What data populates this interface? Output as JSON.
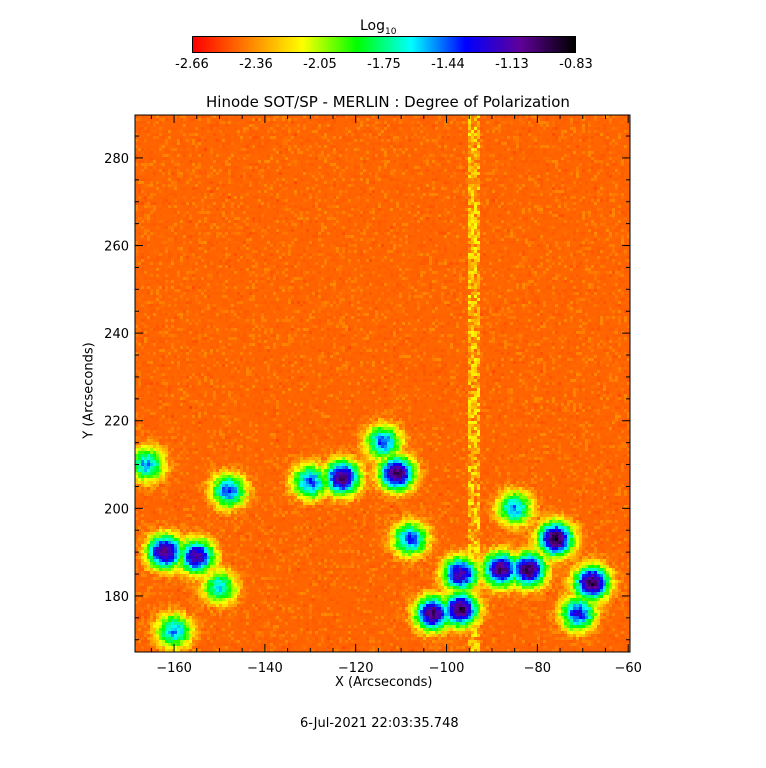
{
  "chart_data": {
    "type": "heatmap",
    "title": "Hinode SOT/SP - MERLIN : Degree of Polarization",
    "xlabel": "X (Arcseconds)",
    "ylabel": "Y (Arcseconds)",
    "xlim": [
      -168.6,
      -59.6
    ],
    "ylim": [
      167.2,
      289.8
    ],
    "xticks": [
      -160,
      -140,
      -120,
      -100,
      -80,
      -60
    ],
    "yticks": [
      180,
      200,
      220,
      240,
      260,
      280
    ],
    "colorbar": {
      "label": "Log",
      "label_sub": "10",
      "range": [
        -2.66,
        -0.83
      ],
      "ticks": [
        "-2.66",
        "-2.36",
        "-2.05",
        "-1.75",
        "-1.44",
        "-1.13",
        "-0.83"
      ],
      "colormap": [
        "#ff0000",
        "#ff8000",
        "#ffff00",
        "#00ff00",
        "#00ffff",
        "#0000ff",
        "#60009a",
        "#000000"
      ]
    },
    "background_level": -2.55,
    "high_polarization_regions": [
      {
        "x": -162,
        "y": 190,
        "value": -1.0
      },
      {
        "x": -155,
        "y": 189,
        "value": -1.1
      },
      {
        "x": -150,
        "y": 182,
        "value": -1.6
      },
      {
        "x": -148,
        "y": 204,
        "value": -1.4
      },
      {
        "x": -130,
        "y": 206,
        "value": -1.4
      },
      {
        "x": -123,
        "y": 207,
        "value": -1.0
      },
      {
        "x": -111,
        "y": 208,
        "value": -0.95
      },
      {
        "x": -114,
        "y": 215,
        "value": -1.4
      },
      {
        "x": -108,
        "y": 193,
        "value": -1.4
      },
      {
        "x": -103,
        "y": 176,
        "value": -1.0
      },
      {
        "x": -97,
        "y": 177,
        "value": -0.95
      },
      {
        "x": -97,
        "y": 185,
        "value": -1.1
      },
      {
        "x": -88,
        "y": 186,
        "value": -1.0
      },
      {
        "x": -82,
        "y": 186,
        "value": -0.95
      },
      {
        "x": -76,
        "y": 193,
        "value": -0.9
      },
      {
        "x": -68,
        "y": 183,
        "value": -0.95
      },
      {
        "x": -71,
        "y": 176,
        "value": -1.3
      },
      {
        "x": -85,
        "y": 200,
        "value": -1.5
      },
      {
        "x": -166,
        "y": 210,
        "value": -1.5
      },
      {
        "x": -160,
        "y": 172,
        "value": -1.5
      }
    ],
    "timestamp": "6-Jul-2021 22:03:35.748"
  }
}
